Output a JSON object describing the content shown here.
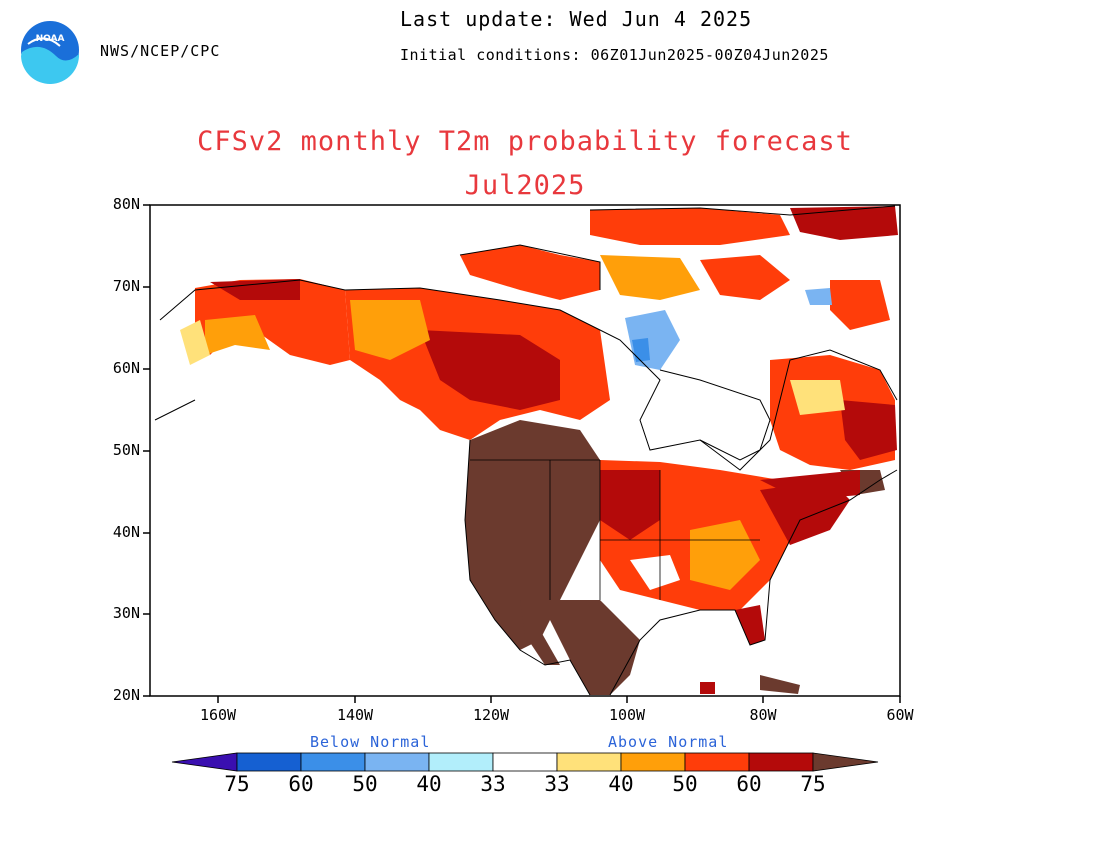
{
  "header": {
    "org": "NWS/NCEP/CPC",
    "last_update": "Last update: Wed Jun 4 2025",
    "initial_conditions": "Initial conditions: 06Z01Jun2025-00Z04Jun2025"
  },
  "title": {
    "line1": "CFSv2 monthly T2m probability forecast",
    "line2": "Jul2025",
    "color": "#e8383d"
  },
  "axes": {
    "lat_labels": [
      "80N",
      "70N",
      "60N",
      "50N",
      "40N",
      "30N",
      "20N"
    ],
    "lon_labels": [
      "160W",
      "140W",
      "120W",
      "100W",
      "80W",
      "60W"
    ],
    "lat_range": [
      20,
      80
    ],
    "lon_range": [
      -170,
      -60
    ]
  },
  "legend": {
    "below_label": "Below Normal",
    "above_label": "Above Normal",
    "label_color": "#2c64d8",
    "tick_labels": [
      "75",
      "60",
      "50",
      "40",
      "33",
      "33",
      "40",
      "50",
      "60",
      "75"
    ],
    "below_colors": [
      "#3a0fb0",
      "#1560d2",
      "#3b8fe8",
      "#7ab4f2",
      "#b2eefb"
    ],
    "neutral_color": "#ffffff",
    "above_colors": [
      "#ffe17a",
      "#ff9f0a",
      "#ff3d0a",
      "#b40a0a",
      "#6b3a2e"
    ]
  }
}
